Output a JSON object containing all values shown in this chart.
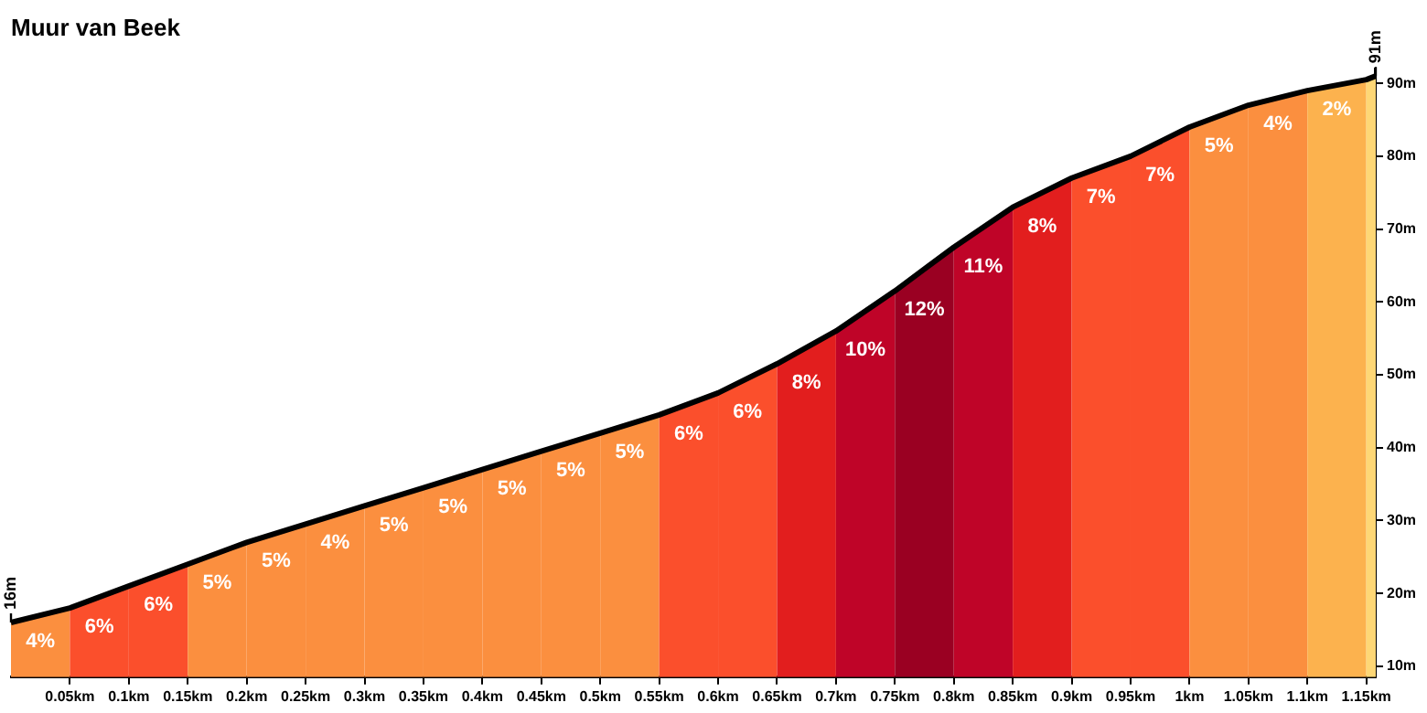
{
  "chart_data": {
    "type": "line",
    "title": "Muur van Beek",
    "x": [
      0,
      0.05,
      0.1,
      0.15,
      0.2,
      0.25,
      0.3,
      0.35,
      0.4,
      0.45,
      0.5,
      0.55,
      0.6,
      0.65,
      0.7,
      0.75,
      0.8,
      0.85,
      0.9,
      0.95,
      1.0,
      1.05,
      1.1,
      1.15,
      1.158
    ],
    "series": [
      {
        "color": "#000000",
        "values": [
          16,
          18,
          21,
          24,
          27,
          29.5,
          32,
          34.5,
          37,
          39.5,
          42,
          44.5,
          47.5,
          51.5,
          56,
          61.5,
          67.5,
          73,
          77,
          80,
          84,
          87,
          89,
          90.5,
          91
        ],
        "value_labels": [
          "16m",
          null,
          null,
          null,
          null,
          null,
          null,
          null,
          null,
          null,
          null,
          null,
          null,
          null,
          null,
          null,
          null,
          null,
          null,
          null,
          null,
          null,
          null,
          null,
          "91m"
        ]
      }
    ],
    "marker": "none",
    "grid": false,
    "xlim": [
      0,
      1.158
    ],
    "xticks": [
      {
        "value": 0.05,
        "label": "0.05km"
      },
      {
        "value": 0.1,
        "label": "0.1km"
      },
      {
        "value": 0.15,
        "label": "0.15km"
      },
      {
        "value": 0.2,
        "label": "0.2km"
      },
      {
        "value": 0.25,
        "label": "0.25km"
      },
      {
        "value": 0.3,
        "label": "0.3km"
      },
      {
        "value": 0.35,
        "label": "0.35km"
      },
      {
        "value": 0.4,
        "label": "0.4km"
      },
      {
        "value": 0.45,
        "label": "0.45km"
      },
      {
        "value": 0.5,
        "label": "0.5km"
      },
      {
        "value": 0.55,
        "label": "0.55km"
      },
      {
        "value": 0.6,
        "label": "0.6km"
      },
      {
        "value": 0.65,
        "label": "0.65km"
      },
      {
        "value": 0.7,
        "label": "0.7km"
      },
      {
        "value": 0.75,
        "label": "0.75km"
      },
      {
        "value": 0.8,
        "label": "0.8km"
      },
      {
        "value": 0.85,
        "label": "0.85km"
      },
      {
        "value": 0.9,
        "label": "0.9km"
      },
      {
        "value": 0.95,
        "label": "0.95km"
      },
      {
        "value": 1.0,
        "label": "1km"
      },
      {
        "value": 1.05,
        "label": "1.05km"
      },
      {
        "value": 1.1,
        "label": "1.1km"
      },
      {
        "value": 1.15,
        "label": "1.15km"
      }
    ],
    "ylim": [
      8.5,
      92
    ],
    "yticks": [
      {
        "value": 10,
        "label": "10m"
      },
      {
        "value": 20,
        "label": "20m"
      },
      {
        "value": 30,
        "label": "30m"
      },
      {
        "value": 40,
        "label": "40m"
      },
      {
        "value": 50,
        "label": "50m"
      },
      {
        "value": 60,
        "label": "60m"
      },
      {
        "value": 70,
        "label": "70m"
      },
      {
        "value": 80,
        "label": "80m"
      },
      {
        "value": 90,
        "label": "90m"
      }
    ],
    "bands": [
      {
        "axis": "x",
        "from": 0,
        "to": 0.05,
        "label": "4%",
        "color": "#fb8f3f"
      },
      {
        "axis": "x",
        "from": 0.05,
        "to": 0.1,
        "label": "6%",
        "color": "#fb4f2c"
      },
      {
        "axis": "x",
        "from": 0.1,
        "to": 0.15,
        "label": "6%",
        "color": "#fb4f2c"
      },
      {
        "axis": "x",
        "from": 0.15,
        "to": 0.2,
        "label": "5%",
        "color": "#fb8f3f"
      },
      {
        "axis": "x",
        "from": 0.2,
        "to": 0.25,
        "label": "5%",
        "color": "#fb8f3f"
      },
      {
        "axis": "x",
        "from": 0.25,
        "to": 0.3,
        "label": "4%",
        "color": "#fb8f3f"
      },
      {
        "axis": "x",
        "from": 0.3,
        "to": 0.35,
        "label": "5%",
        "color": "#fb8f3f"
      },
      {
        "axis": "x",
        "from": 0.35,
        "to": 0.4,
        "label": "5%",
        "color": "#fb8f3f"
      },
      {
        "axis": "x",
        "from": 0.4,
        "to": 0.45,
        "label": "5%",
        "color": "#fb8f3f"
      },
      {
        "axis": "x",
        "from": 0.45,
        "to": 0.5,
        "label": "5%",
        "color": "#fb8f3f"
      },
      {
        "axis": "x",
        "from": 0.5,
        "to": 0.55,
        "label": "5%",
        "color": "#fb8f3f"
      },
      {
        "axis": "x",
        "from": 0.55,
        "to": 0.6,
        "label": "6%",
        "color": "#fb4f2c"
      },
      {
        "axis": "x",
        "from": 0.6,
        "to": 0.65,
        "label": "6%",
        "color": "#fb4f2c"
      },
      {
        "axis": "x",
        "from": 0.65,
        "to": 0.7,
        "label": "8%",
        "color": "#e21e1e"
      },
      {
        "axis": "x",
        "from": 0.7,
        "to": 0.75,
        "label": "10%",
        "color": "#bf0428"
      },
      {
        "axis": "x",
        "from": 0.75,
        "to": 0.8,
        "label": "12%",
        "color": "#9a0022"
      },
      {
        "axis": "x",
        "from": 0.8,
        "to": 0.85,
        "label": "11%",
        "color": "#bf0428"
      },
      {
        "axis": "x",
        "from": 0.85,
        "to": 0.9,
        "label": "8%",
        "color": "#e21e1e"
      },
      {
        "axis": "x",
        "from": 0.9,
        "to": 0.95,
        "label": "7%",
        "color": "#fb4f2c"
      },
      {
        "axis": "x",
        "from": 0.95,
        "to": 1.0,
        "label": "7%",
        "color": "#fb4f2c"
      },
      {
        "axis": "x",
        "from": 1.0,
        "to": 1.05,
        "label": "5%",
        "color": "#fb8f3f"
      },
      {
        "axis": "x",
        "from": 1.05,
        "to": 1.1,
        "label": "4%",
        "color": "#fb8f3f"
      },
      {
        "axis": "x",
        "from": 1.1,
        "to": 1.15,
        "label": "2%",
        "color": "#fcb24e"
      },
      {
        "axis": "x",
        "from": 1.15,
        "to": 1.158,
        "color": "#fed776"
      }
    ]
  }
}
